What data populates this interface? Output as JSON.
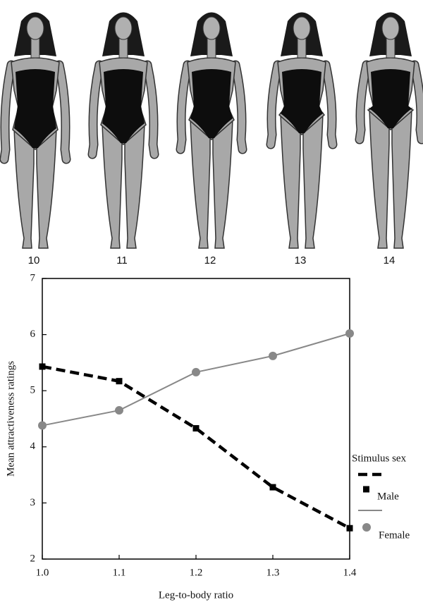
{
  "figure_labels": [
    "10",
    "11",
    "12",
    "13",
    "14"
  ],
  "chart_data": {
    "type": "line",
    "x_label": "Leg-to-body ratio",
    "y_label": "Mean attractiveness ratings",
    "legend_title": "Stimulus sex",
    "x": [
      1.0,
      1.1,
      1.2,
      1.3,
      1.4
    ],
    "series": [
      {
        "name": "Male",
        "color": "#000000",
        "values": [
          5.43,
          5.17,
          4.33,
          3.28,
          2.55
        ]
      },
      {
        "name": "Female",
        "color": "#888888",
        "values": [
          4.38,
          4.65,
          5.33,
          5.62,
          6.02
        ]
      }
    ],
    "xlim": [
      1.0,
      1.4
    ],
    "xticks": [
      {
        "value": 1.0,
        "label": "1.0"
      },
      1.1,
      1.2,
      1.3,
      1.4
    ],
    "ylim": [
      2,
      7
    ],
    "yticks": [
      2,
      3,
      4,
      5,
      6,
      7
    ]
  }
}
